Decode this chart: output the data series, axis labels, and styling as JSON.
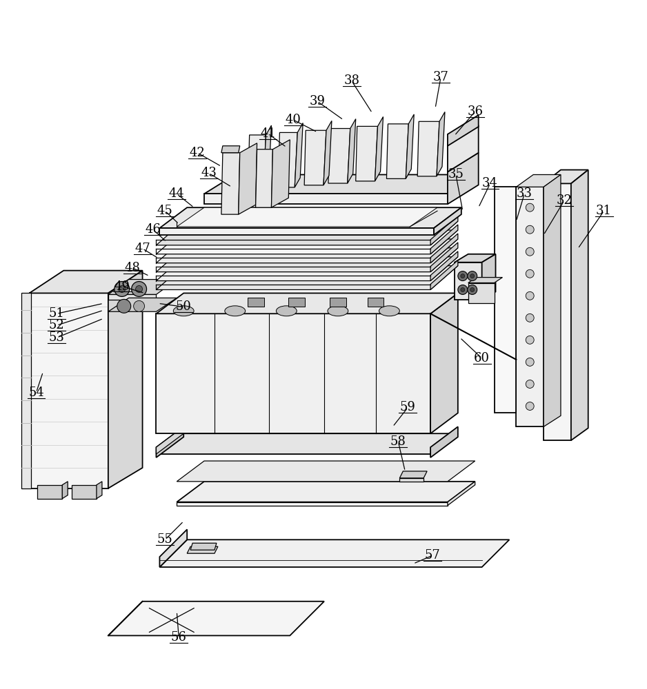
{
  "background_color": "#ffffff",
  "line_color": "#000000",
  "label_fontsize": 13,
  "fig_width": 9.38,
  "fig_height": 10.0,
  "dpi": 100
}
